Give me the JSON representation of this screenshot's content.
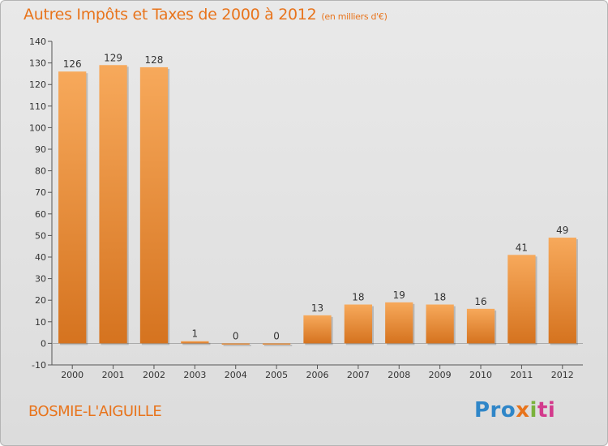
{
  "header": {
    "title": "Autres Impôts et Taxes de 2000 à 2012",
    "subtitle": "(en milliers d'€)"
  },
  "footer": {
    "commune": "BOSMIE-L'AIGUILLE",
    "logo_parts": [
      "Pro",
      "x",
      "i",
      "ti"
    ]
  },
  "colors": {
    "bar_top": "#f7a95b",
    "bar_bottom": "#d5731f",
    "accent": "#e8741c"
  },
  "chart_data": {
    "type": "bar",
    "title": "Autres Impôts et Taxes de 2000 à 2012",
    "subtitle": "(en milliers d'€)",
    "xlabel": "",
    "ylabel": "",
    "categories": [
      "2000",
      "2001",
      "2002",
      "2003",
      "2004",
      "2005",
      "2006",
      "2007",
      "2008",
      "2009",
      "2010",
      "2011",
      "2012"
    ],
    "values": [
      126,
      129,
      128,
      1,
      0,
      0,
      13,
      18,
      19,
      18,
      16,
      41,
      49
    ],
    "ylim": [
      -10,
      140
    ],
    "yticks": [
      -10,
      0,
      10,
      20,
      30,
      40,
      50,
      60,
      70,
      80,
      90,
      100,
      110,
      120,
      130,
      140
    ],
    "grid": false,
    "legend": "none"
  }
}
